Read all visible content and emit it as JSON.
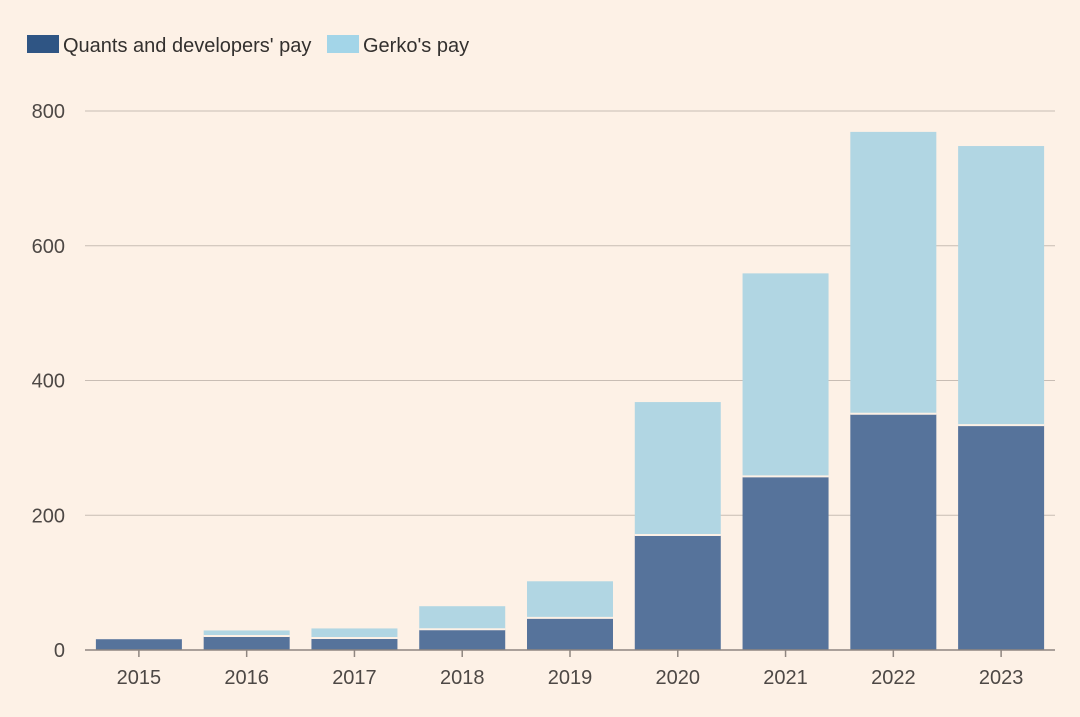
{
  "chart_data": {
    "type": "bar",
    "stacked": true,
    "title": "",
    "xlabel": "",
    "ylabel": "",
    "categories": [
      "2015",
      "2016",
      "2017",
      "2018",
      "2019",
      "2020",
      "2021",
      "2022",
      "2023"
    ],
    "series": [
      {
        "name": "Quants and developers' pay",
        "color": "#56739b",
        "legend_color": "#2f5584",
        "values": [
          16,
          20,
          17,
          30,
          47,
          170,
          257,
          350,
          333
        ]
      },
      {
        "name": "Gerko's pay",
        "color": "#b1d6e3",
        "legend_color": "#a3d5e8",
        "values": [
          0,
          9,
          15,
          35,
          55,
          198,
          302,
          419,
          415
        ]
      }
    ],
    "ylim": [
      0,
      800
    ],
    "yticks": [
      0,
      200,
      400,
      600,
      800
    ],
    "grid": true,
    "legend_position": "top-left"
  }
}
